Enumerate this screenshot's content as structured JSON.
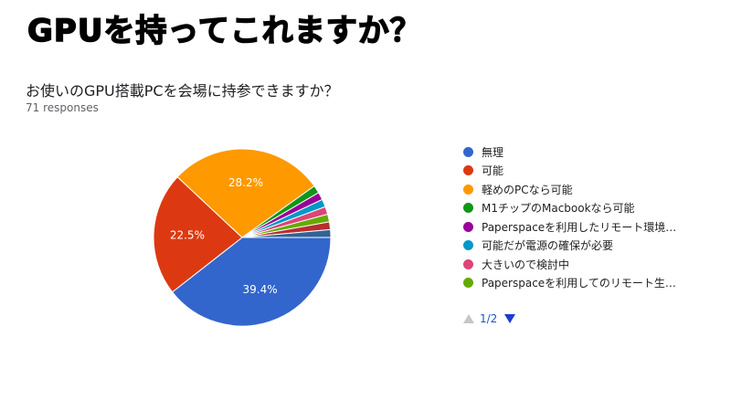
{
  "slide": {
    "title": "GPUを持ってこれますか？"
  },
  "chart_data": {
    "type": "pie",
    "title": "お使いのGPU搭載PCを会場に持参できますか？",
    "subtitle": "71 responses",
    "total_responses": 71,
    "legend_position": "right",
    "slices": [
      {
        "name": "無理",
        "value": 28,
        "percent_label": "39.4%",
        "color": "#3366cc"
      },
      {
        "name": "可能",
        "value": 16,
        "percent_label": "22.5%",
        "color": "#dc3912"
      },
      {
        "name": "軽めのPCなら可能",
        "value": 20,
        "percent_label": "28.2%",
        "color": "#ff9900"
      },
      {
        "name": "M1チップのMacbookなら可能",
        "value": 1,
        "percent_label": "",
        "color": "#109618"
      },
      {
        "name": "Paperspaceを利用したリモート環境…",
        "value": 1,
        "percent_label": "",
        "color": "#990099"
      },
      {
        "name": "可能だが電源の確保が必要",
        "value": 1,
        "percent_label": "",
        "color": "#0099c6"
      },
      {
        "name": "大きいので検討中",
        "value": 1,
        "percent_label": "",
        "color": "#dd4477"
      },
      {
        "name": "Paperspaceを利用してのリモート生…",
        "value": 1,
        "percent_label": "",
        "color": "#66aa00"
      },
      {
        "name": "",
        "value": 1,
        "percent_label": "",
        "color": "#b82e2e"
      },
      {
        "name": "",
        "value": 1,
        "percent_label": "",
        "color": "#316395"
      }
    ],
    "legend_pager": {
      "page": "1/2"
    }
  }
}
